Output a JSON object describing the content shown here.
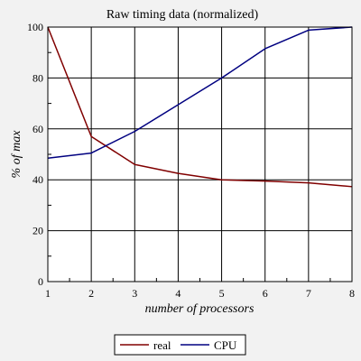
{
  "chart_data": {
    "type": "line",
    "title": "Raw timing data (normalized)",
    "xlabel": "number of processors",
    "ylabel": "% of max",
    "x": [
      1,
      2,
      3,
      4,
      5,
      6,
      7,
      8
    ],
    "xlim": [
      1,
      8
    ],
    "ylim": [
      0,
      100
    ],
    "xticks": [
      1,
      2,
      3,
      4,
      5,
      6,
      7,
      8
    ],
    "yticks": [
      0,
      20,
      40,
      60,
      80,
      100
    ],
    "grid": true,
    "legend_position": "bottom-center",
    "series": [
      {
        "name": "real",
        "color": "#800000",
        "values": [
          100,
          57,
          46,
          42.5,
          40,
          39.5,
          38.8,
          37.3
        ]
      },
      {
        "name": "CPU",
        "color": "#000080",
        "values": [
          48.5,
          50.5,
          59,
          69.5,
          80,
          91.5,
          98.8,
          100
        ]
      }
    ]
  }
}
